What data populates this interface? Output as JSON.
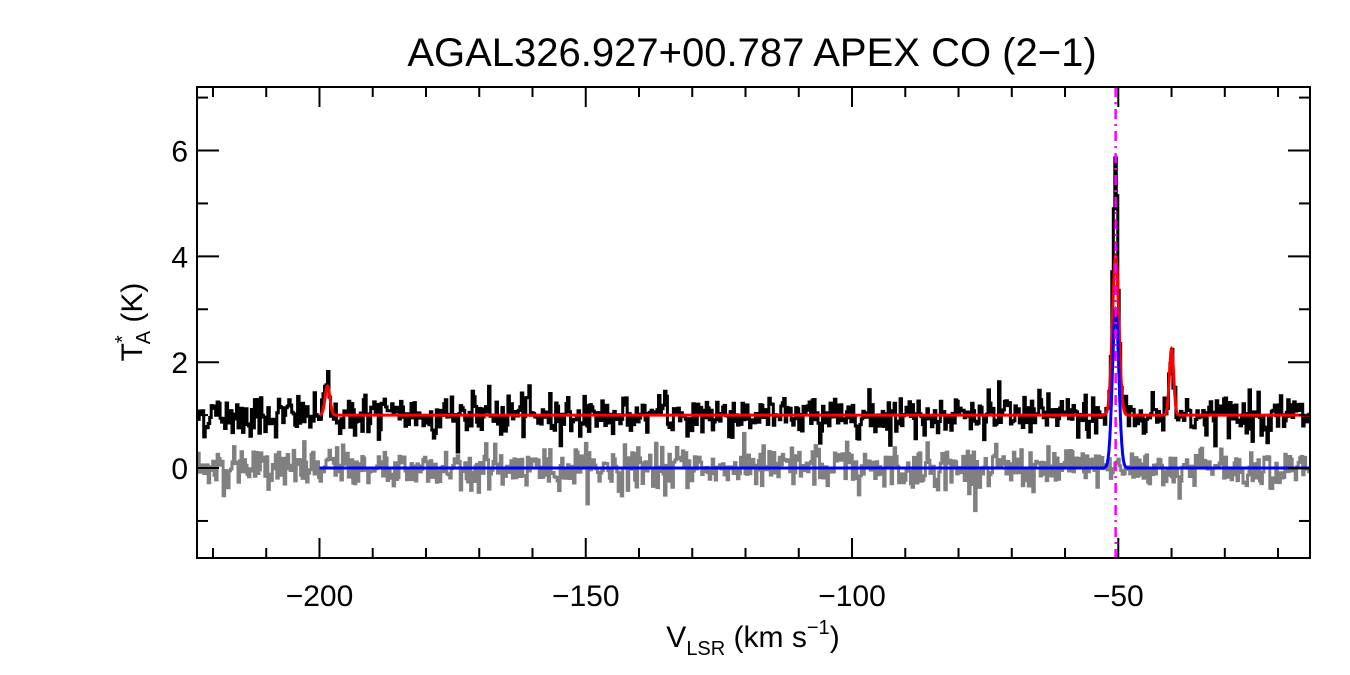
{
  "chart_data": {
    "type": "line",
    "title": "AGAL326.927+00.787  APEX CO (2−1)",
    "xlabel": {
      "main": "V",
      "sub": "LSR",
      "rest": " (km s",
      "sup": "−1",
      "close": ")"
    },
    "ylabel": {
      "main": "T",
      "sup": "*",
      "sub": "A",
      "rest": " (K)"
    },
    "xlim": [
      -223,
      -14
    ],
    "ylim": [
      -1.7,
      7.2
    ],
    "x_ticks": [
      -200,
      -150,
      -100,
      -50
    ],
    "x_tick_labels": [
      "−200",
      "−150",
      "−100",
      "−50"
    ],
    "y_ticks": [
      0,
      2,
      4,
      6
    ],
    "y_tick_labels": [
      "0",
      "2",
      "4",
      "6"
    ],
    "marker_velocity": -50.5,
    "spectrum_offset": 1.0,
    "noise_rms": 0.2,
    "fit_range": [
      -200,
      -14
    ],
    "components": [
      {
        "center": -198.5,
        "amplitude": 0.55,
        "sigma": 0.45
      },
      {
        "center": -50.5,
        "amplitude": 3.0,
        "sigma": 0.6
      },
      {
        "center": -40.0,
        "amplitude": 1.25,
        "sigma": 0.4
      }
    ],
    "observed_peak": {
      "x": -50.5,
      "y": 5.9
    },
    "series": [
      {
        "name": "",
        "color": "#000000"
      },
      {
        "name": "",
        "color": "#808080"
      },
      {
        "name": "",
        "color": "#ff0000"
      },
      {
        "name": "",
        "color": "#0000ff"
      }
    ],
    "marker_color": "#ff00ff"
  }
}
